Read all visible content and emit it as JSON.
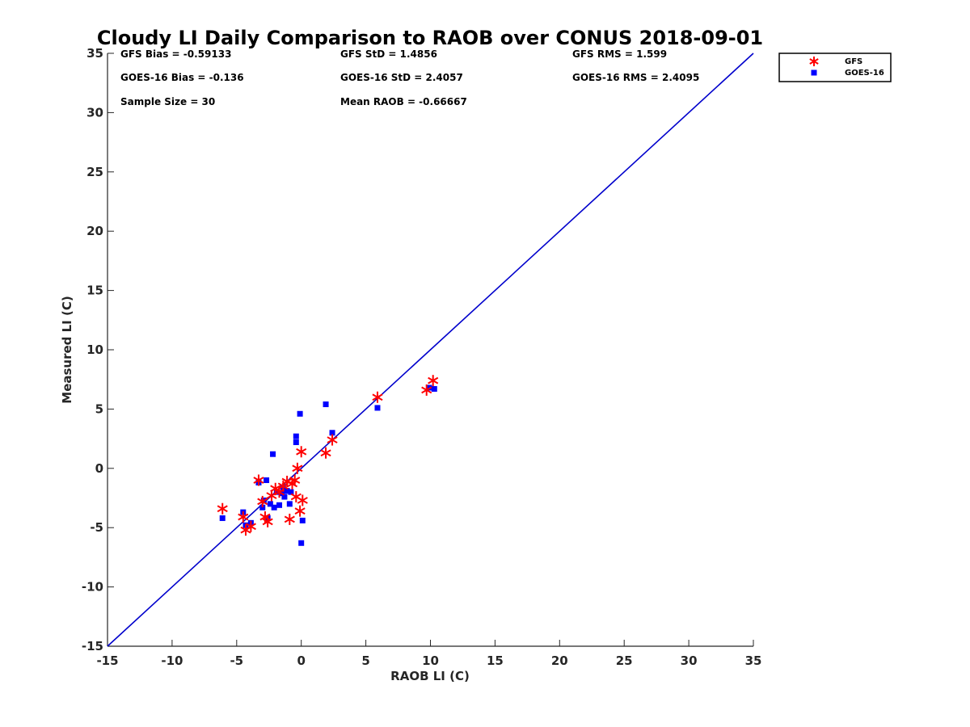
{
  "chart_data": {
    "type": "scatter",
    "title": "Cloudy LI Daily Comparison to RAOB over CONUS 2018-09-01",
    "xlabel": "RAOB LI (C)",
    "ylabel": "Measured LI (C)",
    "xlim": [
      -15,
      35
    ],
    "ylim": [
      -15,
      35
    ],
    "xticks": [
      -15,
      -10,
      -5,
      0,
      5,
      10,
      15,
      20,
      25,
      30,
      35
    ],
    "yticks": [
      -15,
      -10,
      -5,
      0,
      5,
      10,
      15,
      20,
      25,
      30,
      35
    ],
    "grid": false,
    "legend_position": "top-right outside",
    "reference_line": {
      "type": "one-to-one",
      "from": [
        -15,
        -15
      ],
      "to": [
        35,
        35
      ],
      "color": "#0000cc"
    },
    "stats": [
      [
        "GFS Bias = -0.59133",
        "GFS StD = 1.4856",
        "GFS RMS = 1.599"
      ],
      [
        "GOES-16 Bias = -0.136",
        "GOES-16 StD = 2.4057",
        "GOES-16 RMS = 2.4095"
      ],
      [
        "Sample Size = 30",
        "Mean RAOB = -0.66667",
        ""
      ]
    ],
    "series": [
      {
        "name": "GFS",
        "marker": "asterisk",
        "color": "#ff0000",
        "points": [
          [
            -6.1,
            -3.4
          ],
          [
            -4.5,
            -4.1
          ],
          [
            -4.3,
            -5.2
          ],
          [
            -3.9,
            -4.9
          ],
          [
            -3.3,
            -1.0
          ],
          [
            -3.0,
            -2.8
          ],
          [
            -2.8,
            -4.1
          ],
          [
            -2.6,
            -4.5
          ],
          [
            -2.3,
            -2.3
          ],
          [
            -2.0,
            -1.7
          ],
          [
            -1.7,
            -2.0
          ],
          [
            -1.4,
            -1.5
          ],
          [
            -1.1,
            -1.1
          ],
          [
            -0.9,
            -4.3
          ],
          [
            -0.7,
            -1.3
          ],
          [
            -0.5,
            -1.0
          ],
          [
            -0.4,
            -2.4
          ],
          [
            -0.3,
            0.0
          ],
          [
            -0.1,
            -3.6
          ],
          [
            0.0,
            1.4
          ],
          [
            0.1,
            -2.7
          ],
          [
            1.9,
            1.3
          ],
          [
            2.4,
            2.4
          ],
          [
            5.9,
            6.0
          ],
          [
            9.7,
            6.6
          ],
          [
            10.2,
            7.4
          ]
        ]
      },
      {
        "name": "GOES-16",
        "marker": "square",
        "color": "#0000ff",
        "points": [
          [
            -6.1,
            -4.2
          ],
          [
            -4.5,
            -3.7
          ],
          [
            -4.3,
            -4.8
          ],
          [
            -3.9,
            -4.6
          ],
          [
            -3.3,
            -1.2
          ],
          [
            -3.0,
            -3.3
          ],
          [
            -2.9,
            -2.7
          ],
          [
            -2.7,
            -1.0
          ],
          [
            -2.6,
            -4.2
          ],
          [
            -2.4,
            -3.0
          ],
          [
            -2.2,
            1.2
          ],
          [
            -2.1,
            -3.3
          ],
          [
            -1.9,
            -2.0
          ],
          [
            -1.7,
            -3.1
          ],
          [
            -1.5,
            -2.1
          ],
          [
            -1.4,
            -1.6
          ],
          [
            -1.3,
            -2.4
          ],
          [
            -1.1,
            -1.9
          ],
          [
            -0.9,
            -3.0
          ],
          [
            -0.8,
            -2.0
          ],
          [
            -0.4,
            2.2
          ],
          [
            -0.4,
            2.7
          ],
          [
            -0.1,
            4.6
          ],
          [
            0.0,
            -6.3
          ],
          [
            0.1,
            -4.4
          ],
          [
            1.9,
            5.4
          ],
          [
            2.4,
            3.0
          ],
          [
            5.9,
            5.1
          ],
          [
            9.9,
            6.8
          ],
          [
            10.3,
            6.7
          ]
        ]
      }
    ]
  }
}
